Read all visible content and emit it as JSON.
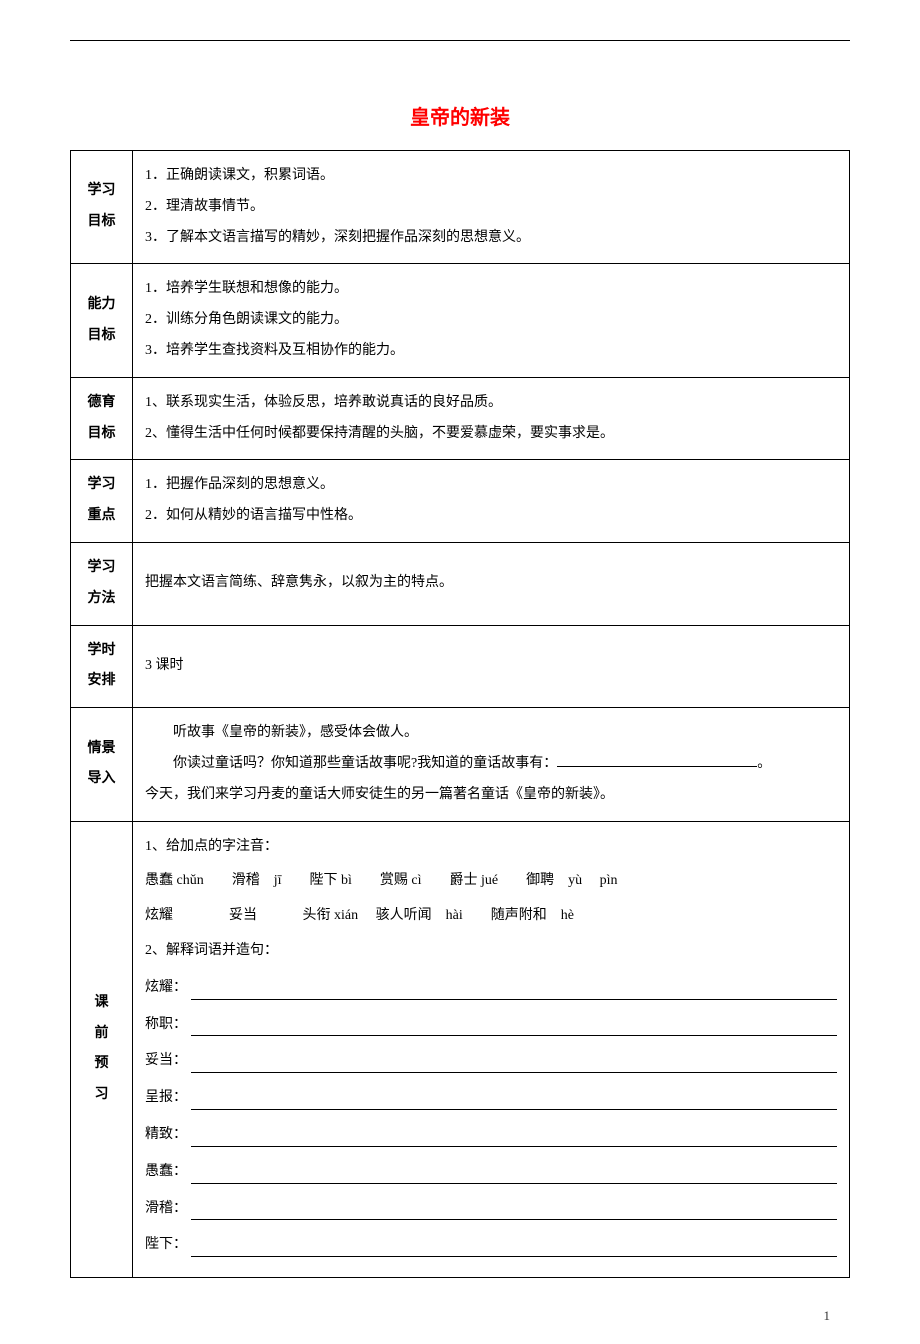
{
  "title": "皇帝的新装",
  "title_color": "#ff0000",
  "page_background": "#ffffff",
  "text_color": "#000000",
  "border_color": "#000000",
  "font_family": "SimSun",
  "base_fontsize": 14,
  "title_fontsize": 20,
  "table": {
    "label_column_width": 62,
    "rows": [
      {
        "label": "学习目标",
        "items": [
          "1．正确朗读课文，积累词语。",
          "2．理清故事情节。",
          "3．了解本文语言描写的精妙，深刻把握作品深刻的思想意义。"
        ]
      },
      {
        "label": "能力目标",
        "items": [
          "1．培养学生联想和想像的能力。",
          "2．训练分角色朗读课文的能力。",
          "3．培养学生查找资料及互相协作的能力。"
        ]
      },
      {
        "label": "德育目标",
        "items": [
          "1、联系现实生活，体验反思，培养敢说真话的良好品质。",
          "2、懂得生活中任何时候都要保持清醒的头脑，不要爱慕虚荣，要实事求是。"
        ]
      },
      {
        "label": "学习重点",
        "items": [
          "1．把握作品深刻的思想意义。",
          "2．如何从精妙的语言描写中性格。"
        ]
      },
      {
        "label": "学习方法",
        "text": "把握本文语言简练、辞意隽永，以叙为主的特点。"
      },
      {
        "label": "学时安排",
        "text": "3 课时"
      },
      {
        "label": "情景导入",
        "intro_line1": "听故事《皇帝的新装》，感受体会做人。",
        "intro_line2_prefix": "你读过童话吗？你知道那些童话故事呢?我知道的童话故事有：",
        "intro_line2_suffix": "。",
        "intro_line3": "今天，我们来学习丹麦的童话大师安徒生的另一篇著名童话《皇帝的新装》。"
      },
      {
        "label": "课前预习",
        "section1_title": "1、给加点的字注音：",
        "pinyin_rows": [
          "愚蠢 chǔn　　滑稽　jī　　陛下 bì　　赏赐 cì　　爵士 jué　　御聘　yù　 pìn",
          "炫耀　　　　妥当　　　 头衔 xián　 骇人听闻　hài　　随声附和　hè"
        ],
        "section2_title": "2、解释词语并造句：",
        "vocab_items": [
          "炫耀：",
          "称职：",
          "妥当：",
          "呈报：",
          "精致：",
          "愚蠢：",
          "滑稽：",
          "陛下："
        ]
      }
    ]
  },
  "page_number": "1"
}
